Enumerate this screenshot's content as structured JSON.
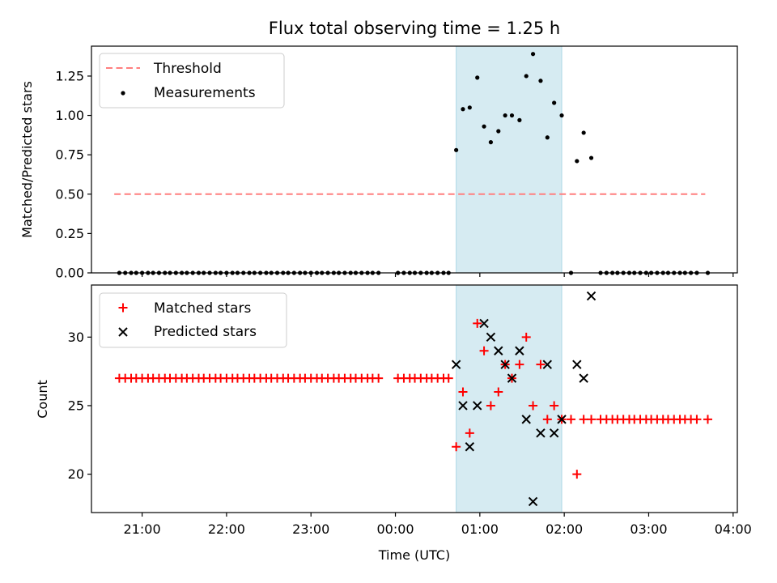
{
  "chart_data": [
    {
      "type": "scatter",
      "title": "Flux total observing time = 1.25 h",
      "xlabel": "",
      "ylabel": "Matched/Predicted stars",
      "ylim": [
        0,
        1.44
      ],
      "yticks": [
        "0.00",
        "0.25",
        "0.50",
        "0.75",
        "1.00",
        "1.25"
      ],
      "shaded_span_x_hours": [
        0.72,
        1.97
      ],
      "threshold": {
        "name": "Threshold",
        "value": 0.5,
        "x_range_hours": [
          -3.33,
          3.67
        ],
        "color": "#ff7f7f",
        "style": "dashed"
      },
      "series": [
        {
          "name": "Measurements",
          "marker": "dot",
          "color": "#000000",
          "x_hours": [
            -3.27,
            -3.2,
            -3.13,
            -3.07,
            -3.0,
            -2.93,
            -2.87,
            -2.8,
            -2.73,
            -2.67,
            -2.6,
            -2.53,
            -2.47,
            -2.4,
            -2.33,
            -2.27,
            -2.2,
            -2.13,
            -2.07,
            -2.0,
            -1.93,
            -1.87,
            -1.8,
            -1.73,
            -1.67,
            -1.6,
            -1.53,
            -1.47,
            -1.4,
            -1.33,
            -1.27,
            -1.2,
            -1.13,
            -1.07,
            -1.0,
            -0.93,
            -0.87,
            -0.8,
            -0.73,
            -0.67,
            -0.6,
            -0.53,
            -0.47,
            -0.4,
            -0.33,
            -0.27,
            -0.2,
            0.03,
            0.1,
            0.17,
            0.23,
            0.3,
            0.37,
            0.43,
            0.5,
            0.57,
            0.63,
            0.72,
            0.8,
            0.88,
            0.97,
            1.05,
            1.13,
            1.22,
            1.3,
            1.38,
            1.47,
            1.55,
            1.63,
            1.72,
            1.8,
            1.88,
            1.97,
            2.08,
            2.15,
            2.23,
            2.32,
            2.43,
            2.5,
            2.57,
            2.63,
            2.7,
            2.77,
            2.83,
            2.9,
            2.97,
            3.03,
            3.1,
            3.17,
            3.23,
            3.3,
            3.37,
            3.43,
            3.5,
            3.57,
            3.7
          ],
          "y": [
            0,
            0,
            0,
            0,
            0,
            0,
            0,
            0,
            0,
            0,
            0,
            0,
            0,
            0,
            0,
            0,
            0,
            0,
            0,
            0,
            0,
            0,
            0,
            0,
            0,
            0,
            0,
            0,
            0,
            0,
            0,
            0,
            0,
            0,
            0,
            0,
            0,
            0,
            0,
            0,
            0,
            0,
            0,
            0,
            0,
            0,
            0,
            0,
            0,
            0,
            0,
            0,
            0,
            0,
            0,
            0,
            0,
            0.78,
            1.04,
            1.05,
            1.24,
            0.93,
            0.83,
            0.9,
            1.0,
            1.0,
            0.97,
            1.25,
            1.39,
            1.22,
            0.86,
            1.08,
            1.0,
            0,
            0.71,
            0.89,
            0.73,
            0,
            0,
            0,
            0,
            0,
            0,
            0,
            0,
            0,
            0,
            0,
            0,
            0,
            0,
            0,
            0,
            0,
            0,
            0
          ]
        }
      ]
    },
    {
      "type": "scatter",
      "xlabel": "Time (UTC)",
      "ylabel": "Count",
      "ylim": [
        17.2,
        33.8
      ],
      "yticks": [
        "20",
        "25",
        "30"
      ],
      "xticks": [
        "21:00",
        "22:00",
        "23:00",
        "00:00",
        "01:00",
        "02:00",
        "03:00",
        "04:00"
      ],
      "shaded_span_x_hours": [
        0.72,
        1.97
      ],
      "series": [
        {
          "name": "Matched stars",
          "marker": "plus",
          "color": "#ff0000",
          "x_hours": [
            -3.27,
            -3.2,
            -3.13,
            -3.07,
            -3.0,
            -2.93,
            -2.87,
            -2.8,
            -2.73,
            -2.67,
            -2.6,
            -2.53,
            -2.47,
            -2.4,
            -2.33,
            -2.27,
            -2.2,
            -2.13,
            -2.07,
            -2.0,
            -1.93,
            -1.87,
            -1.8,
            -1.73,
            -1.67,
            -1.6,
            -1.53,
            -1.47,
            -1.4,
            -1.33,
            -1.27,
            -1.2,
            -1.13,
            -1.07,
            -1.0,
            -0.93,
            -0.87,
            -0.8,
            -0.73,
            -0.67,
            -0.6,
            -0.53,
            -0.47,
            -0.4,
            -0.33,
            -0.27,
            -0.2,
            0.03,
            0.1,
            0.17,
            0.23,
            0.3,
            0.37,
            0.43,
            0.5,
            0.57,
            0.63,
            0.72,
            0.8,
            0.88,
            0.97,
            1.05,
            1.13,
            1.22,
            1.3,
            1.38,
            1.47,
            1.55,
            1.63,
            1.72,
            1.8,
            1.88,
            1.97,
            2.08,
            2.15,
            2.23,
            2.32,
            2.43,
            2.5,
            2.57,
            2.63,
            2.7,
            2.77,
            2.83,
            2.9,
            2.97,
            3.03,
            3.1,
            3.17,
            3.23,
            3.3,
            3.37,
            3.43,
            3.5,
            3.57,
            3.7
          ],
          "y": [
            27,
            27,
            27,
            27,
            27,
            27,
            27,
            27,
            27,
            27,
            27,
            27,
            27,
            27,
            27,
            27,
            27,
            27,
            27,
            27,
            27,
            27,
            27,
            27,
            27,
            27,
            27,
            27,
            27,
            27,
            27,
            27,
            27,
            27,
            27,
            27,
            27,
            27,
            27,
            27,
            27,
            27,
            27,
            27,
            27,
            27,
            27,
            27,
            27,
            27,
            27,
            27,
            27,
            27,
            27,
            27,
            27,
            22,
            26,
            23,
            31,
            29,
            25,
            26,
            28,
            27,
            28,
            30,
            25,
            28,
            24,
            25,
            24,
            24,
            20,
            24,
            24,
            24,
            24,
            24,
            24,
            24,
            24,
            24,
            24,
            24,
            24,
            24,
            24,
            24,
            24,
            24,
            24,
            24,
            24,
            24
          ]
        },
        {
          "name": "Predicted stars",
          "marker": "x",
          "color": "#000000",
          "x_hours": [
            0.72,
            0.8,
            0.88,
            0.97,
            1.05,
            1.13,
            1.22,
            1.3,
            1.38,
            1.47,
            1.55,
            1.63,
            1.72,
            1.8,
            1.88,
            1.97,
            2.15,
            2.23,
            2.32
          ],
          "y": [
            28,
            25,
            22,
            25,
            31,
            30,
            29,
            28,
            27,
            29,
            24,
            18,
            23,
            28,
            23,
            24,
            28,
            27,
            33
          ]
        }
      ]
    }
  ]
}
